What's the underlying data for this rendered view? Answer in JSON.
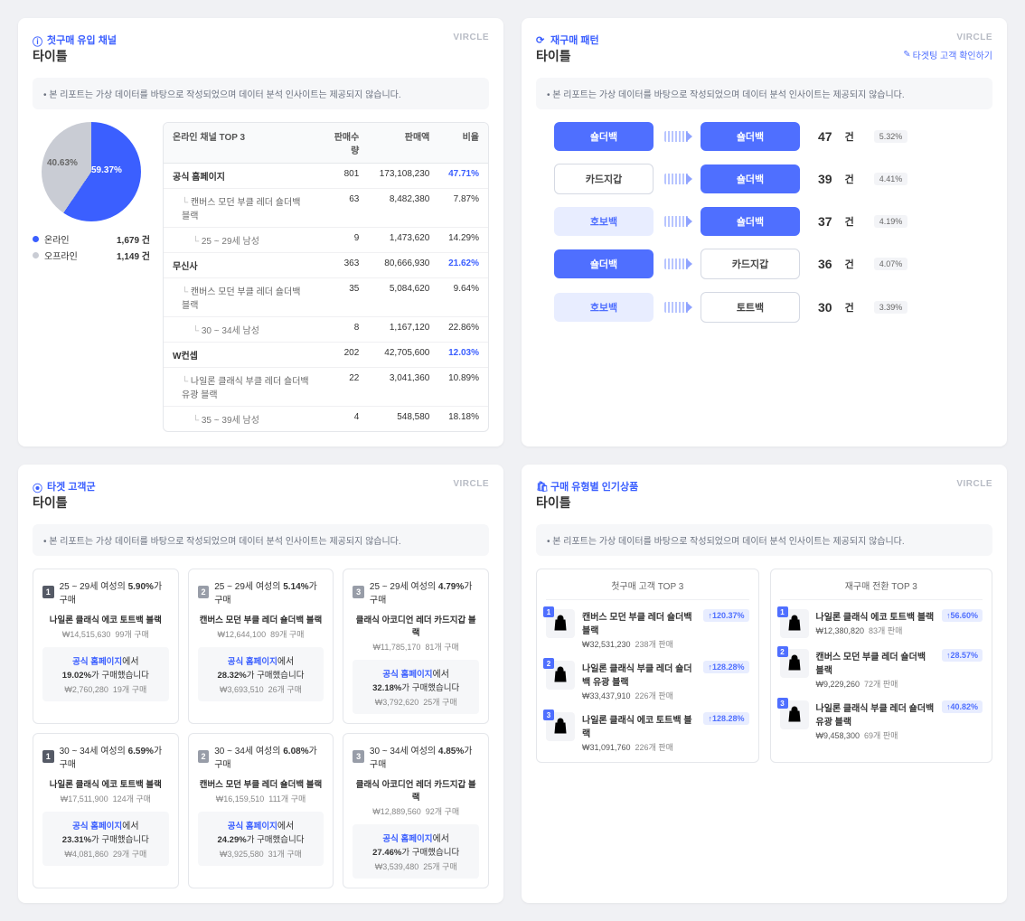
{
  "brand": "VIRCLE",
  "note": "본 리포트는 가상 데이터를 바탕으로 작성되었으며 데이터 분석 인사이트는 제공되지 않습니다.",
  "title": "타이틀",
  "colors": {
    "blue": "#3b5fff",
    "gray": "#c9ccd4",
    "lightblue": "#e8edff"
  },
  "panel1": {
    "label": "첫구매 유입 채널",
    "pie": {
      "a_label": "59.37%",
      "b_label": "40.63%",
      "a_deg": 214
    },
    "legend": [
      {
        "name": "온라인",
        "val": "1,679 건",
        "color": "#3b5fff"
      },
      {
        "name": "오프라인",
        "val": "1,149 건",
        "color": "#c9ccd4"
      }
    ],
    "headers": [
      "온라인 채널 TOP 3",
      "판매수량",
      "판매액",
      "비율"
    ],
    "rows": [
      {
        "lvl": 0,
        "name": "공식 홈페이지",
        "q": "801",
        "amt": "173,108,230",
        "pct": "47.71%",
        "hl": true
      },
      {
        "lvl": 1,
        "name": "캔버스 모던 부클 레더 숄더백 블랙",
        "q": "63",
        "amt": "8,482,380",
        "pct": "7.87%"
      },
      {
        "lvl": 2,
        "name": "25 ~ 29세 남성",
        "q": "9",
        "amt": "1,473,620",
        "pct": "14.29%"
      },
      {
        "lvl": 0,
        "name": "무신사",
        "q": "363",
        "amt": "80,666,930",
        "pct": "21.62%",
        "hl": true
      },
      {
        "lvl": 1,
        "name": "캔버스 모던 부클 레더 숄더백 블랙",
        "q": "35",
        "amt": "5,084,620",
        "pct": "9.64%"
      },
      {
        "lvl": 2,
        "name": "30 ~ 34세 남성",
        "q": "8",
        "amt": "1,167,120",
        "pct": "22.86%"
      },
      {
        "lvl": 0,
        "name": "W컨셉",
        "q": "202",
        "amt": "42,705,600",
        "pct": "12.03%",
        "hl": true
      },
      {
        "lvl": 1,
        "name": "나일론 클래식 부클 레더 숄더백 유광 블랙",
        "q": "22",
        "amt": "3,041,360",
        "pct": "10.89%"
      },
      {
        "lvl": 2,
        "name": "35 ~ 39세 남성",
        "q": "4",
        "amt": "548,580",
        "pct": "18.18%"
      }
    ]
  },
  "panel2": {
    "label": "재구매 패턴",
    "action": "타겟팅 고객 확인하기",
    "unit": "건",
    "flows": [
      {
        "from": "숄더백",
        "fromStyle": "fb-blue",
        "to": "숄더백",
        "toStyle": "fb-blue",
        "count": "47",
        "pct": "5.32%"
      },
      {
        "from": "카드지갑",
        "fromStyle": "fb-outline",
        "to": "숄더백",
        "toStyle": "fb-blue",
        "count": "39",
        "pct": "4.41%"
      },
      {
        "from": "호보백",
        "fromStyle": "fb-light",
        "to": "숄더백",
        "toStyle": "fb-blue",
        "count": "37",
        "pct": "4.19%"
      },
      {
        "from": "숄더백",
        "fromStyle": "fb-blue",
        "to": "카드지갑",
        "toStyle": "fb-outline",
        "count": "36",
        "pct": "4.07%"
      },
      {
        "from": "호보백",
        "fromStyle": "fb-light",
        "to": "토트백",
        "toStyle": "fb-outline",
        "count": "30",
        "pct": "3.39%"
      }
    ]
  },
  "panel3": {
    "label": "타겟 고객군",
    "link_suffix": "에서",
    "buy_suffix": "가 구매했습니다",
    "hdr_suffix": "가 구매",
    "tiles": [
      {
        "rank": "1",
        "seg": "25 ~ 29세 여성의",
        "pct": "5.90%",
        "prod": "나일론 클래식 에코 토트백 블랙",
        "price": "₩14,515,630",
        "cnt": "99개 구매",
        "link": "공식 홈페이지",
        "lpct": "19.02%",
        "lprice": "₩2,760,280",
        "lcnt": "19개 구매"
      },
      {
        "rank": "2",
        "seg": "25 ~ 29세 여성의",
        "pct": "5.14%",
        "prod": "캔버스 모던 부클 레더 숄더백 블랙",
        "price": "₩12,644,100",
        "cnt": "89개 구매",
        "link": "공식 홈페이지",
        "lpct": "28.32%",
        "lprice": "₩3,693,510",
        "lcnt": "26개 구매"
      },
      {
        "rank": "3",
        "seg": "25 ~ 29세 여성의",
        "pct": "4.79%",
        "prod": "클래식 아코디언 레더 카드지갑 블랙",
        "price": "₩11,785,170",
        "cnt": "81개 구매",
        "link": "공식 홈페이지",
        "lpct": "32.18%",
        "lprice": "₩3,792,620",
        "lcnt": "25개 구매"
      },
      {
        "rank": "1",
        "seg": "30 ~ 34세 여성의",
        "pct": "6.59%",
        "prod": "나일론 클래식 에코 토트백 블랙",
        "price": "₩17,511,900",
        "cnt": "124개 구매",
        "link": "공식 홈페이지",
        "lpct": "23.31%",
        "lprice": "₩4,081,860",
        "lcnt": "29개 구매"
      },
      {
        "rank": "2",
        "seg": "30 ~ 34세 여성의",
        "pct": "6.08%",
        "prod": "캔버스 모던 부클 레더 숄더백 블랙",
        "price": "₩16,159,510",
        "cnt": "111개 구매",
        "link": "공식 홈페이지",
        "lpct": "24.29%",
        "lprice": "₩3,925,580",
        "lcnt": "31개 구매"
      },
      {
        "rank": "3",
        "seg": "30 ~ 34세 여성의",
        "pct": "4.85%",
        "prod": "클래식 아코디언 레더 카드지갑 블랙",
        "price": "₩12,889,560",
        "cnt": "92개 구매",
        "link": "공식 홈페이지",
        "lpct": "27.46%",
        "lprice": "₩3,539,480",
        "lcnt": "25개 구매"
      }
    ]
  },
  "panel4": {
    "label": "구매 유형별 인기상품",
    "cols": [
      {
        "title": "첫구매 고객 TOP 3",
        "items": [
          {
            "rank": "1",
            "name": "캔버스 모던 부클 레더 숄더백 블랙",
            "price": "₩32,531,230",
            "cnt": "238개 판매",
            "delta": "↑120.37%"
          },
          {
            "rank": "2",
            "name": "나일론 클래식 부클 레더 숄더백 유광 블랙",
            "price": "₩33,437,910",
            "cnt": "226개 판매",
            "delta": "↑128.28%"
          },
          {
            "rank": "3",
            "name": "나일론 클래식 에코 토트백 블랙",
            "price": "₩31,091,760",
            "cnt": "226개 판매",
            "delta": "↑128.28%"
          }
        ]
      },
      {
        "title": "재구매 전환 TOP 3",
        "items": [
          {
            "rank": "1",
            "name": "나일론 클래식 에코 토트백 블랙",
            "price": "₩12,380,820",
            "cnt": "83개 판매",
            "delta": "↑56.60%"
          },
          {
            "rank": "2",
            "name": "캔버스 모던 부클 레더 숄더백 블랙",
            "price": "₩9,229,260",
            "cnt": "72개 판매",
            "delta": "↑28.57%"
          },
          {
            "rank": "3",
            "name": "나일론 클래식 부클 레더 숄더백 유광 블랙",
            "price": "₩9,458,300",
            "cnt": "69개 판매",
            "delta": "↑40.82%"
          }
        ]
      }
    ]
  }
}
